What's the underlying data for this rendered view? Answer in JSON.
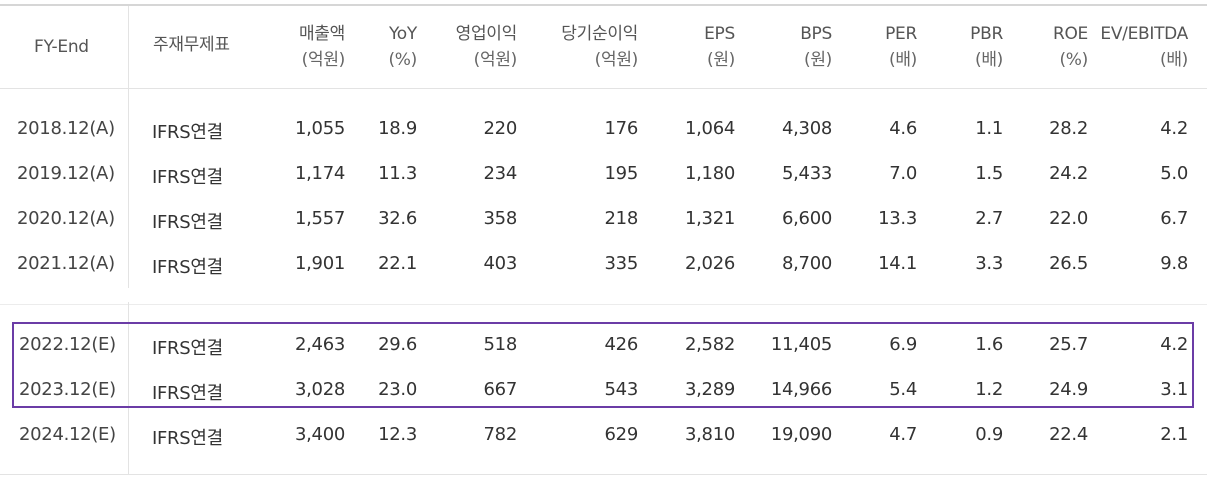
{
  "header": {
    "fy_end": "FY-End",
    "main_table": "주재무제표",
    "sales": {
      "name": "매출액",
      "unit": "(억원)"
    },
    "yoy": {
      "name": "YoY",
      "unit": "(%)"
    },
    "op_income": {
      "name": "영업이익",
      "unit": "(억원)"
    },
    "net_income": {
      "name": "당기순이익",
      "unit": "(억원)"
    },
    "eps": {
      "name": "EPS",
      "unit": "(원)"
    },
    "bps": {
      "name": "BPS",
      "unit": "(원)"
    },
    "per": {
      "name": "PER",
      "unit": "(배)"
    },
    "pbr": {
      "name": "PBR",
      "unit": "(배)"
    },
    "roe": {
      "name": "ROE",
      "unit": "(%)"
    },
    "ev_ebitda": {
      "name": "EV/EBITDA",
      "unit": "(배)"
    }
  },
  "rows": [
    {
      "fy": "2018.12(A)",
      "type": "IFRS연결",
      "sales": "1,055",
      "yoy": "18.9",
      "op": "220",
      "net": "176",
      "eps": "1,064",
      "bps": "4,308",
      "per": "4.6",
      "pbr": "1.1",
      "roe": "28.2",
      "ev": "4.2"
    },
    {
      "fy": "2019.12(A)",
      "type": "IFRS연결",
      "sales": "1,174",
      "yoy": "11.3",
      "op": "234",
      "net": "195",
      "eps": "1,180",
      "bps": "5,433",
      "per": "7.0",
      "pbr": "1.5",
      "roe": "24.2",
      "ev": "5.0"
    },
    {
      "fy": "2020.12(A)",
      "type": "IFRS연결",
      "sales": "1,557",
      "yoy": "32.6",
      "op": "358",
      "net": "218",
      "eps": "1,321",
      "bps": "6,600",
      "per": "13.3",
      "pbr": "2.7",
      "roe": "22.0",
      "ev": "6.7"
    },
    {
      "fy": "2021.12(A)",
      "type": "IFRS연결",
      "sales": "1,901",
      "yoy": "22.1",
      "op": "403",
      "net": "335",
      "eps": "2,026",
      "bps": "8,700",
      "per": "14.1",
      "pbr": "3.3",
      "roe": "26.5",
      "ev": "9.8"
    },
    {
      "fy": "2022.12(E)",
      "type": "IFRS연결",
      "sales": "2,463",
      "yoy": "29.6",
      "op": "518",
      "net": "426",
      "eps": "2,582",
      "bps": "11,405",
      "per": "6.9",
      "pbr": "1.6",
      "roe": "25.7",
      "ev": "4.2"
    },
    {
      "fy": "2023.12(E)",
      "type": "IFRS연결",
      "sales": "3,028",
      "yoy": "23.0",
      "op": "667",
      "net": "543",
      "eps": "3,289",
      "bps": "14,966",
      "per": "5.4",
      "pbr": "1.2",
      "roe": "24.9",
      "ev": "3.1"
    },
    {
      "fy": "2024.12(E)",
      "type": "IFRS연결",
      "sales": "3,400",
      "yoy": "12.3",
      "op": "782",
      "net": "629",
      "eps": "3,810",
      "bps": "19,090",
      "per": "4.7",
      "pbr": "0.9",
      "roe": "22.4",
      "ev": "2.1"
    }
  ],
  "highlight_color": "#6b3ca6"
}
